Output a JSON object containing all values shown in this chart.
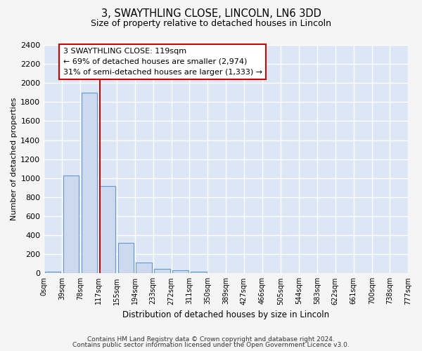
{
  "title": "3, SWAYTHLING CLOSE, LINCOLN, LN6 3DD",
  "subtitle": "Size of property relative to detached houses in Lincoln",
  "xlabel": "Distribution of detached houses by size in Lincoln",
  "ylabel": "Number of detached properties",
  "bar_color": "#ccd9ee",
  "bar_edge_color": "#6699cc",
  "background_color": "#dce6f5",
  "grid_color": "#ffffff",
  "fig_background": "#f5f5f5",
  "bin_edges": [
    0,
    39,
    78,
    117,
    155,
    194,
    233,
    272,
    311,
    350,
    389,
    427,
    466,
    505,
    544,
    583,
    622,
    661,
    700,
    738,
    777
  ],
  "bar_heights": [
    20,
    1025,
    1900,
    920,
    320,
    110,
    50,
    30,
    20,
    0,
    0,
    0,
    0,
    0,
    0,
    0,
    0,
    0,
    0,
    0
  ],
  "property_size": 119,
  "red_line_color": "#cc0000",
  "annotation_line1": "3 SWAYTHLING CLOSE: 119sqm",
  "annotation_line2": "← 69% of detached houses are smaller (2,974)",
  "annotation_line3": "31% of semi-detached houses are larger (1,333) →",
  "annotation_box_color": "#ffffff",
  "annotation_box_edge": "#cc0000",
  "ylim": [
    0,
    2400
  ],
  "yticks": [
    0,
    200,
    400,
    600,
    800,
    1000,
    1200,
    1400,
    1600,
    1800,
    2000,
    2200,
    2400
  ],
  "footnote1": "Contains HM Land Registry data © Crown copyright and database right 2024.",
  "footnote2": "Contains public sector information licensed under the Open Government Licence v3.0."
}
